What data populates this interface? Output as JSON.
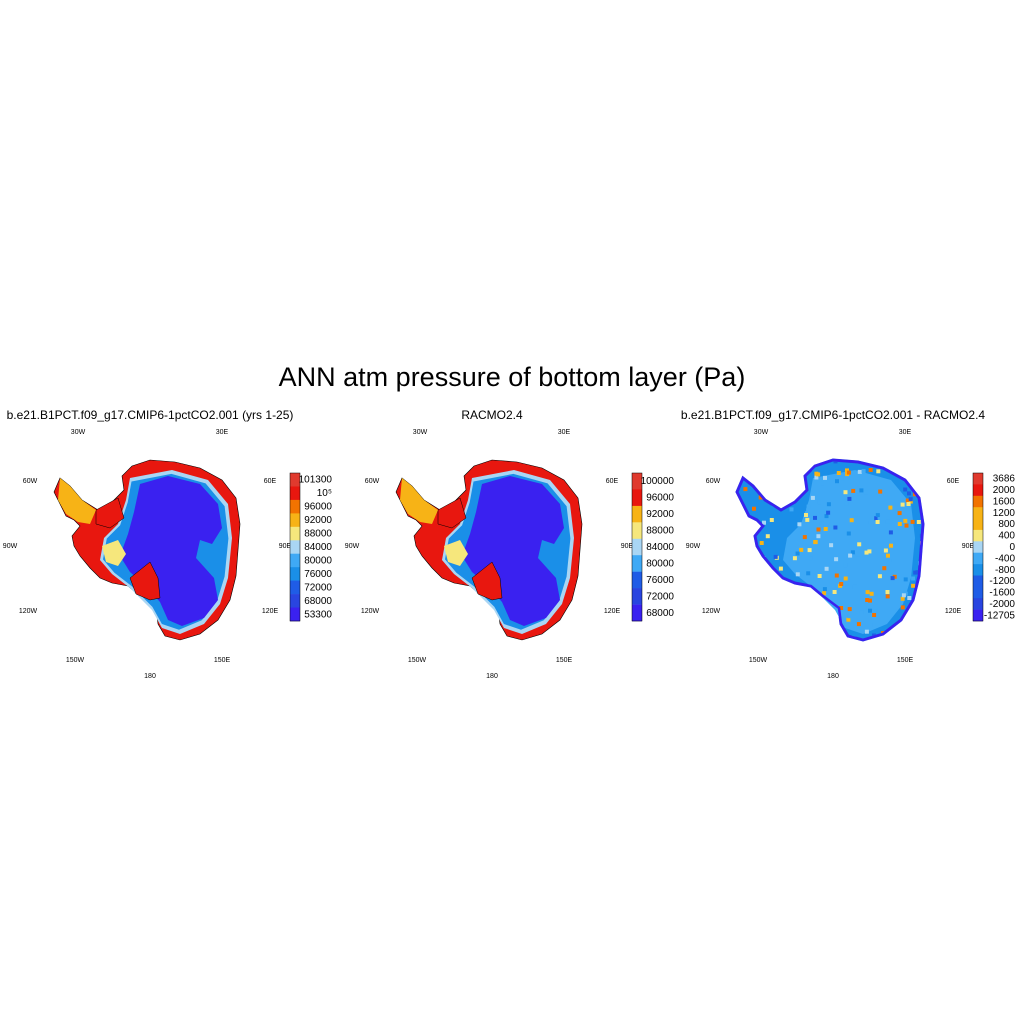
{
  "figure": {
    "title": "ANN atm pressure of bottom layer (Pa)"
  },
  "lon_labels": [
    "30W",
    "30E",
    "60W",
    "60E",
    "90W",
    "90E",
    "120W",
    "120E",
    "150W",
    "150E",
    "180"
  ],
  "panels": [
    {
      "title": "b.e21.B1PCT.f09_g17.CMIP6-1pctCO2.001 (yrs 1-25)",
      "colorbar": {
        "colors": [
          "#e03a2e",
          "#e8170f",
          "#f27300",
          "#f7b316",
          "#f6e77c",
          "#a9d6f4",
          "#3fa9f5",
          "#1a8fe8",
          "#1f5ce6",
          "#2945e0",
          "#3a21f0"
        ],
        "labels": [
          "101300",
          "10⁵",
          "96000",
          "92000",
          "88000",
          "84000",
          "80000",
          "76000",
          "72000",
          "68000",
          "53300"
        ]
      }
    },
    {
      "title": "RACMO2.4",
      "colorbar": {
        "colors": [
          "#e03a2e",
          "#e8170f",
          "#f27300",
          "#f7b316",
          "#f6e77c",
          "#a9d6f4",
          "#3fa9f5",
          "#1a8fe8",
          "#1f5ce6",
          "#2945e0",
          "#3a21f0"
        ],
        "labels": [
          "100000",
          "96000",
          "92000",
          "88000",
          "84000",
          "80000",
          "76000",
          "72000",
          "68000"
        ]
      }
    },
    {
      "title": "b.e21.B1PCT.f09_g17.CMIP6-1pctCO2.001 - RACMO2.4",
      "colorbar": {
        "colors": [
          "#e03a2e",
          "#e8170f",
          "#f27300",
          "#f7b316",
          "#f6e77c",
          "#a9d6f4",
          "#3fa9f5",
          "#1a8fe8",
          "#1f5ce6",
          "#2945e0",
          "#3a21f0"
        ],
        "labels": [
          "3686",
          "2000",
          "1600",
          "1200",
          "800",
          "400",
          "0",
          "-400",
          "-800",
          "-1200",
          "-1600",
          "-2000",
          "-12705"
        ]
      }
    }
  ]
}
